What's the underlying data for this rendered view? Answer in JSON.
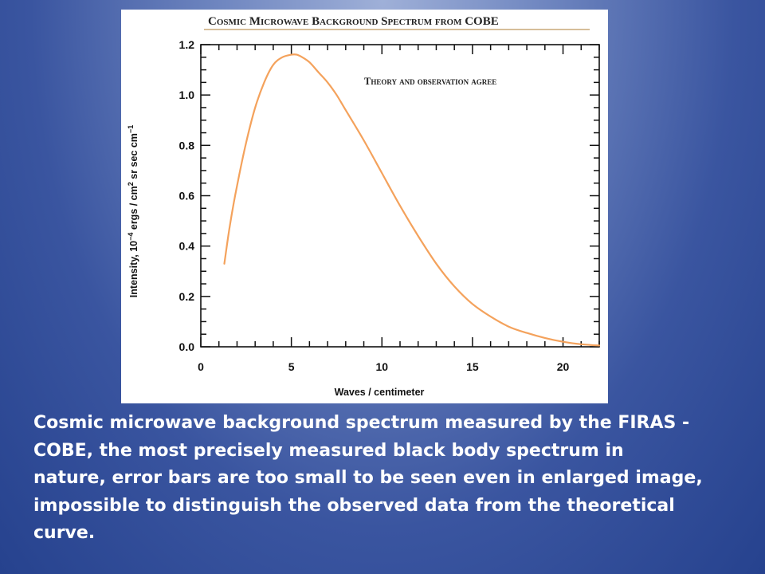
{
  "chart_data": {
    "type": "line",
    "title": "Cosmic Microwave Background Spectrum from COBE",
    "annotation": "Theory and observation agree",
    "xlabel": "Waves / centimeter",
    "ylabel_prefix": "Intensity, 10",
    "ylabel_exp1": "−4",
    "ylabel_mid": " ergs / cm",
    "ylabel_exp2": "2",
    "ylabel_mid2": " sr sec cm",
    "ylabel_exp3": "−1",
    "xlim": [
      0,
      22
    ],
    "ylim": [
      0,
      1.2
    ],
    "x_ticks": [
      "0",
      "5",
      "10",
      "15",
      "20"
    ],
    "y_ticks": [
      "0.0",
      "0.2",
      "0.4",
      "0.6",
      "0.8",
      "1.0",
      "1.2"
    ],
    "grid": false,
    "series": [
      {
        "color": "#f4a25c",
        "x": [
          1.3,
          1.6,
          2.0,
          2.5,
          3.0,
          3.5,
          4.0,
          4.5,
          5.0,
          5.3,
          5.6,
          6.0,
          6.5,
          7.0,
          7.5,
          8.0,
          9.0,
          10.0,
          11.0,
          12.0,
          13.0,
          14.0,
          15.0,
          16.0,
          17.0,
          18.0,
          19.0,
          20.0,
          21.0,
          22.0
        ],
        "y": [
          0.33,
          0.48,
          0.64,
          0.81,
          0.95,
          1.05,
          1.12,
          1.15,
          1.16,
          1.16,
          1.15,
          1.13,
          1.09,
          1.05,
          1.0,
          0.94,
          0.82,
          0.69,
          0.56,
          0.44,
          0.33,
          0.24,
          0.17,
          0.12,
          0.08,
          0.055,
          0.035,
          0.02,
          0.01,
          0.005
        ]
      }
    ]
  },
  "caption": "Cosmic microwave background spectrum measured by the FIRAS -\n COBE, the most precisely measured black body spectrum in\nnature, error bars are too small to be seen even in enlarged image,\nimpossible to distinguish the observed data from the theoretical\ncurve."
}
